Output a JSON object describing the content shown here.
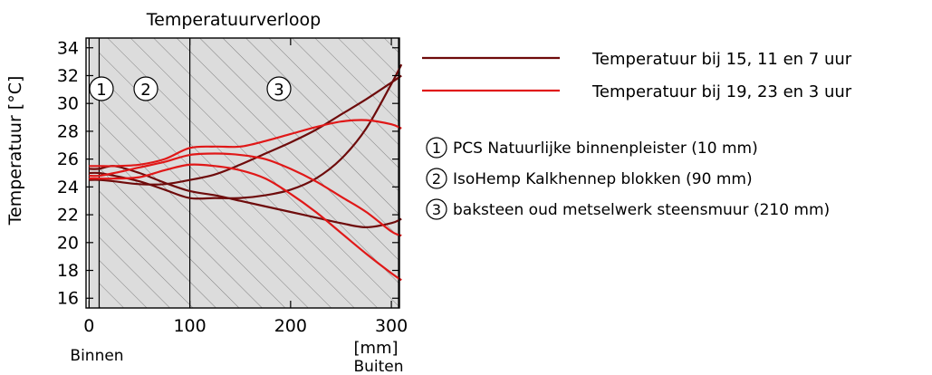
{
  "chart_data": {
    "type": "line",
    "title": "Temperatuurverloop",
    "ylabel": "Temperatuur [°C]",
    "xunit": "[mm]",
    "x_inside_label": "Binnen",
    "x_outside_label": "Buiten",
    "xlim": [
      -3,
      308
    ],
    "ylim": [
      15.3,
      34.7
    ],
    "xticks": [
      0,
      100,
      200,
      300
    ],
    "yticks": [
      16,
      18,
      20,
      22,
      24,
      26,
      28,
      30,
      32,
      34
    ],
    "grid": false,
    "legend_position": "right",
    "layer_boundaries": [
      0,
      10,
      100,
      310
    ],
    "layers": [
      {
        "number": "1",
        "name": "PCS Natuurlijke binnenpleister (10 mm)",
        "x_from": 0,
        "x_to": 10
      },
      {
        "number": "2",
        "name": "IsoHemp Kalkhennep blokken (90 mm)",
        "x_from": 10,
        "x_to": 100
      },
      {
        "number": "3",
        "name": "baksteen oud metselwerk steensmuur (210 mm)",
        "x_from": 100,
        "x_to": 310
      }
    ],
    "legend": [
      {
        "label": "Temperatuur bij 15, 11 en 7 uur",
        "color": "#6e0b0b"
      },
      {
        "label": "Temperatuur bij 19, 23 en 3 uur",
        "color": "#e01818"
      }
    ],
    "x": [
      0,
      10,
      25,
      50,
      75,
      100,
      125,
      150,
      175,
      200,
      225,
      250,
      275,
      300,
      310
    ],
    "series": [
      {
        "group": "Temperatuur bij 15, 11 en 7 uur",
        "color": "#6e0b0b",
        "values": [
          25.0,
          25.0,
          24.8,
          24.4,
          23.8,
          23.2,
          23.2,
          23.2,
          23.4,
          23.8,
          24.6,
          26.0,
          28.2,
          31.4,
          32.8
        ]
      },
      {
        "group": "Temperatuur bij 15, 11 en 7 uur",
        "color": "#6e0b0b",
        "values": [
          24.5,
          24.5,
          24.4,
          24.2,
          24.2,
          24.5,
          24.9,
          25.6,
          26.4,
          27.2,
          28.1,
          29.2,
          30.3,
          31.5,
          32.0
        ]
      },
      {
        "group": "Temperatuur bij 15, 11 en 7 uur",
        "color": "#6e0b0b",
        "values": [
          25.3,
          25.3,
          25.5,
          25.0,
          24.3,
          23.7,
          23.4,
          23.0,
          22.6,
          22.2,
          21.8,
          21.4,
          21.1,
          21.4,
          21.7
        ]
      },
      {
        "group": "Temperatuur bij 19, 23 en 3 uur",
        "color": "#e01818",
        "values": [
          25.5,
          25.5,
          25.5,
          25.6,
          26.0,
          26.8,
          26.9,
          26.9,
          27.3,
          27.8,
          28.3,
          28.7,
          28.8,
          28.5,
          28.2
        ]
      },
      {
        "group": "Temperatuur bij 19, 23 en 3 uur",
        "color": "#e01818",
        "values": [
          24.8,
          24.8,
          25.0,
          25.4,
          25.8,
          26.3,
          26.4,
          26.3,
          26.0,
          25.3,
          24.4,
          23.3,
          22.2,
          20.8,
          20.5
        ]
      },
      {
        "group": "Temperatuur bij 19, 23 en 3 uur",
        "color": "#e01818",
        "values": [
          24.6,
          24.6,
          24.6,
          24.7,
          25.2,
          25.6,
          25.5,
          25.2,
          24.6,
          23.5,
          22.2,
          20.7,
          19.2,
          17.8,
          17.3
        ]
      }
    ]
  }
}
